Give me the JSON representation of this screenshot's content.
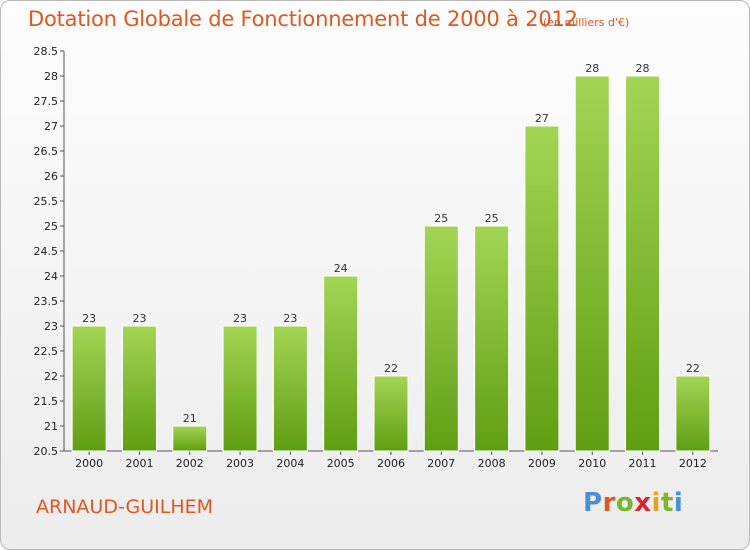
{
  "header": {
    "title": "Dotation Globale de Fonctionnement de 2000 à 2012",
    "subtitle": "(en milliers d'€)"
  },
  "footer": {
    "commune": "ARNAUD-GUILHEM",
    "logo": {
      "letters": [
        "P",
        "r",
        "o",
        "x",
        "i",
        "t",
        "i"
      ],
      "colors": [
        "#4a8fd8",
        "#e0571f",
        "#7cb52b",
        "#d9262e",
        "#e9a21c",
        "#7cb52b",
        "#4a8fd8"
      ]
    }
  },
  "chart_data": {
    "type": "bar",
    "title": "Dotation Globale de Fonctionnement de 2000 à 2012",
    "subtitle": "(en milliers d'€)",
    "categories": [
      "2000",
      "2001",
      "2002",
      "2003",
      "2004",
      "2005",
      "2006",
      "2007",
      "2008",
      "2009",
      "2010",
      "2011",
      "2012"
    ],
    "values": [
      23,
      23,
      21,
      23,
      23,
      24,
      22,
      25,
      25,
      27,
      28,
      28,
      22
    ],
    "data_labels": [
      "23",
      "23",
      "21",
      "23",
      "23",
      "24",
      "22",
      "25",
      "25",
      "27",
      "28",
      "28",
      "22"
    ],
    "xlabel": "",
    "ylabel": "",
    "ylim": [
      20.5,
      28.5
    ],
    "yticks": [
      "20.5",
      "21",
      "21.5",
      "22",
      "22.5",
      "23",
      "23.5",
      "24",
      "24.5",
      "25",
      "25.5",
      "26",
      "26.5",
      "27",
      "27.5",
      "28",
      "28.5"
    ],
    "grid": false,
    "legend": "none",
    "colors": {
      "bar_light": "#a3d554",
      "bar_dark": "#5f9e13",
      "title": "#e0571f"
    }
  }
}
